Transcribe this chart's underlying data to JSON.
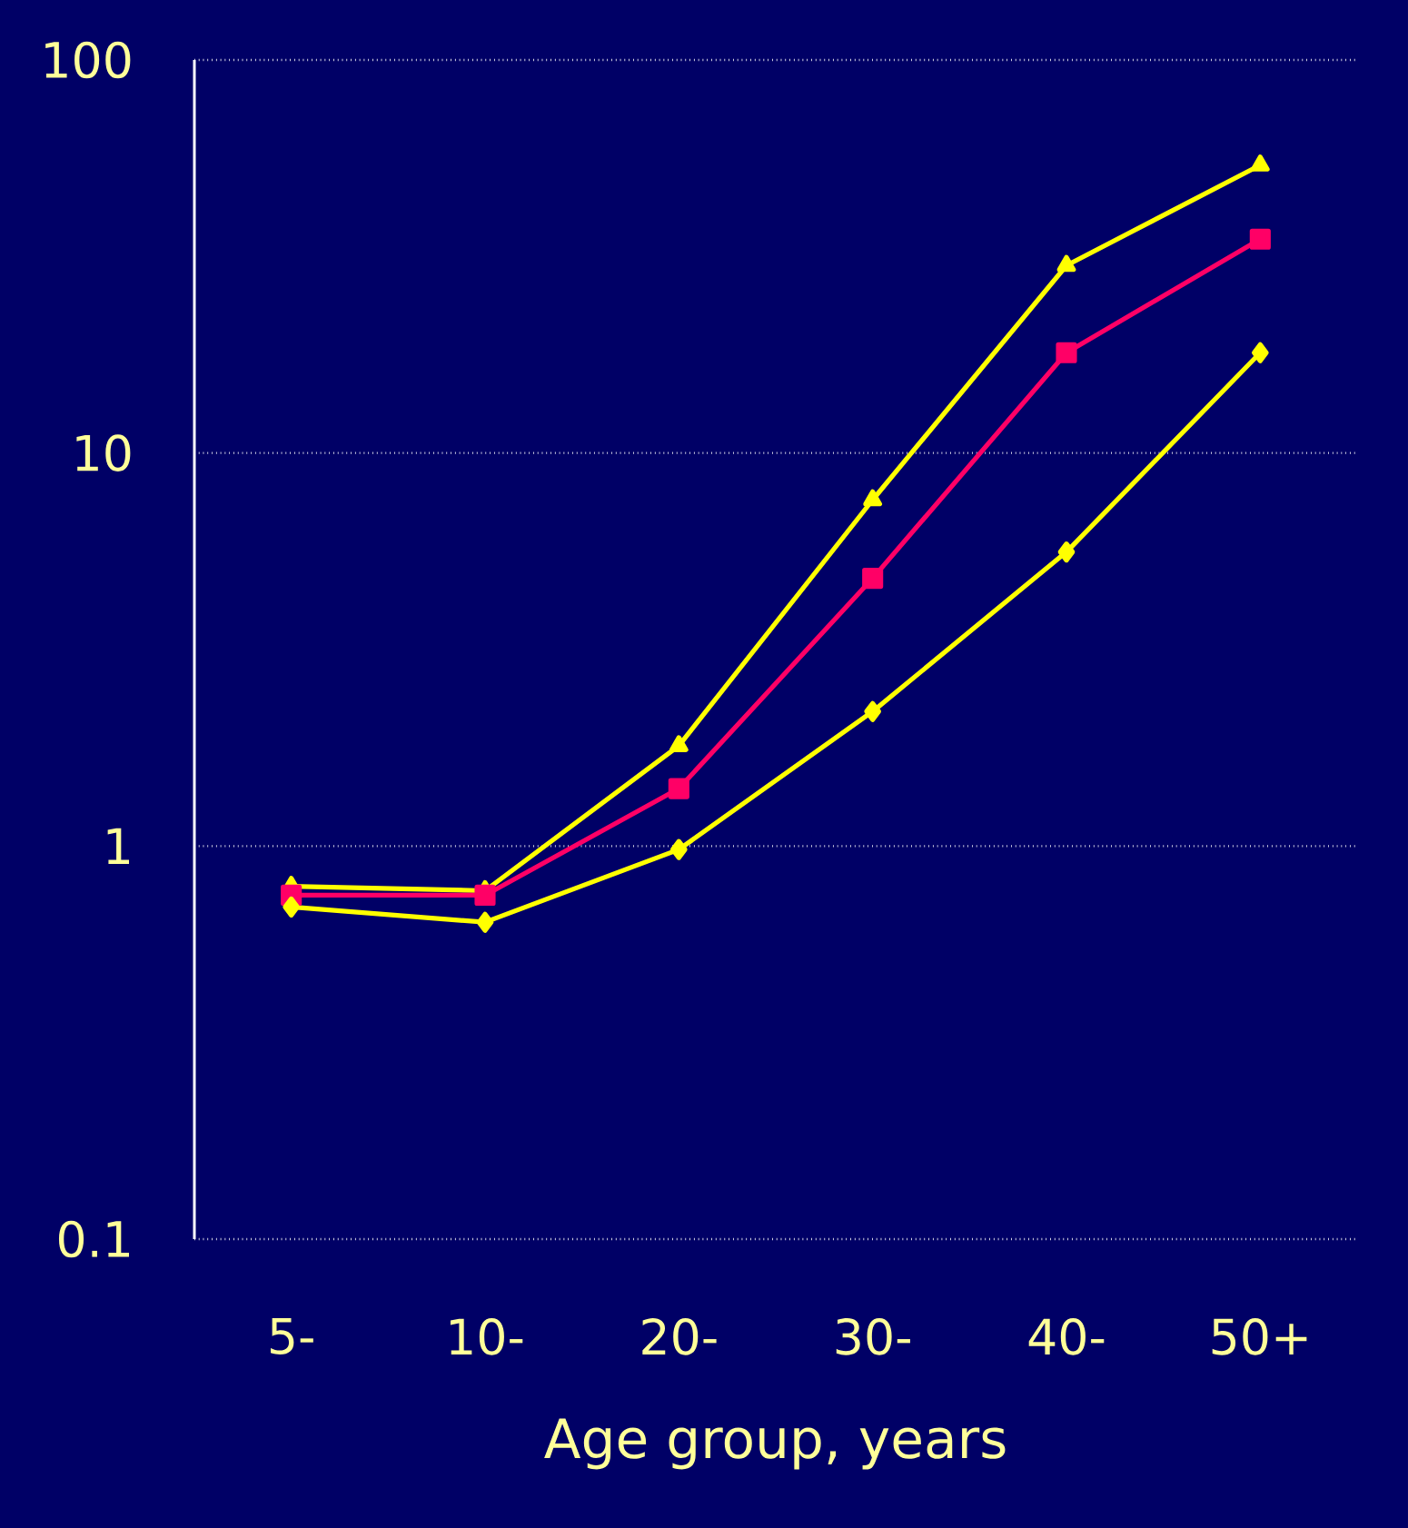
{
  "chart_data": {
    "type": "line",
    "xlabel": "Age group, years",
    "categories": [
      "5-",
      "10-",
      "20-",
      "30-",
      "40-",
      "50+"
    ],
    "series": [
      {
        "color": "#ffff00",
        "marker": "triangle",
        "values": [
          0.79,
          0.77,
          1.8,
          7.6,
          30,
          54
        ]
      },
      {
        "color": "#ff0066",
        "marker": "square",
        "values": [
          0.75,
          0.75,
          1.4,
          4.8,
          18,
          35
        ]
      },
      {
        "color": "#ffff00",
        "marker": "diamond",
        "values": [
          0.7,
          0.64,
          0.98,
          2.2,
          5.6,
          18
        ]
      }
    ],
    "log": "y",
    "ylim": [
      0.1,
      100
    ],
    "yticks": [
      0.1,
      1,
      10,
      100
    ],
    "grid": "y",
    "line_style": "solid"
  }
}
